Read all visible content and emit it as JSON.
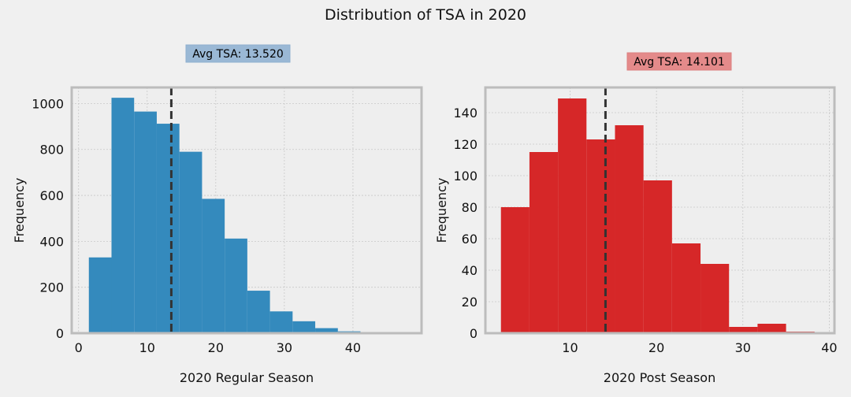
{
  "figure": {
    "title": "Distribution of TSA in 2020"
  },
  "chart_data": [
    {
      "type": "bar",
      "subtype": "histogram",
      "xlabel": "2020 Regular Season",
      "ylabel": "Frequency",
      "xlim": [
        -1,
        50
      ],
      "ylim": [
        0,
        1070
      ],
      "xticks": [
        0,
        10,
        20,
        30,
        40
      ],
      "yticks": [
        0,
        200,
        400,
        600,
        800,
        1000
      ],
      "bin_edges": [
        1.5,
        4.8,
        8.1,
        11.4,
        14.7,
        18.0,
        21.3,
        24.6,
        27.9,
        31.2,
        34.5,
        37.8,
        41.1,
        44.4,
        47.7
      ],
      "values": [
        330,
        1025,
        965,
        912,
        790,
        585,
        412,
        185,
        95,
        52,
        22,
        8,
        3,
        1
      ],
      "color": "#348abd",
      "mean": 13.52,
      "annotation": "Avg TSA: 13.520",
      "annotation_color": "#9ab8d5",
      "grid": true
    },
    {
      "type": "bar",
      "subtype": "histogram",
      "xlabel": "2020 Post Season",
      "ylabel": "Frequency",
      "xlim": [
        0.2,
        40.6
      ],
      "ylim": [
        0,
        156
      ],
      "xticks": [
        10,
        20,
        30,
        40
      ],
      "yticks": [
        0,
        20,
        40,
        60,
        80,
        100,
        120,
        140
      ],
      "bin_edges": [
        2.0,
        5.3,
        8.6,
        11.9,
        15.2,
        18.5,
        21.8,
        25.1,
        28.4,
        31.7,
        35.0,
        38.3
      ],
      "values": [
        80,
        115,
        149,
        123,
        132,
        97,
        57,
        44,
        4,
        6,
        1
      ],
      "color": "#d62728",
      "mean": 14.101,
      "annotation": "Avg TSA: 14.101",
      "annotation_color": "#e48a8a",
      "grid": true
    }
  ]
}
